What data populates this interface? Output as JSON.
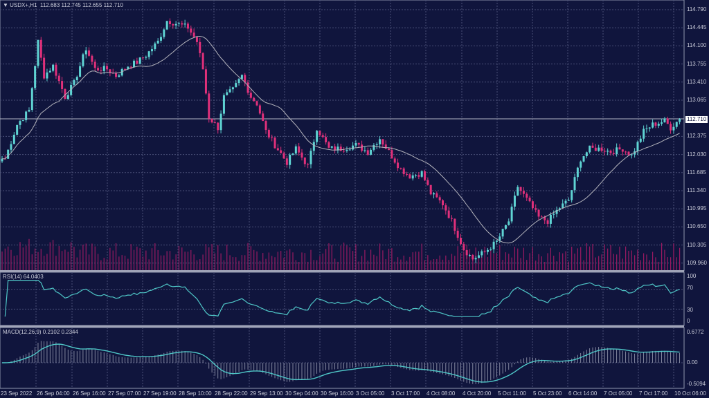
{
  "header": {
    "symbol": "USDX+,H1",
    "ohlc": "112.683 112.745 112.655 112.710",
    "menu_icon": "triangle-down-icon"
  },
  "colors": {
    "background": "#10153d",
    "bull": "#5fd3d3",
    "bear": "#e0307a",
    "ma": "#b4b4bc",
    "indicator": "#4fc8c8",
    "volume": "#9c1a62",
    "grid": "#4a5078"
  },
  "chart_data": {
    "type": "candlestick",
    "symbol": "USDX+",
    "timeframe": "H1",
    "current_price": "112.710",
    "ylim": [
      109.96,
      114.79
    ],
    "price_ticks": [
      "114.790",
      "114.445",
      "114.100",
      "113.755",
      "113.410",
      "113.065",
      "112.710",
      "112.375",
      "112.030",
      "111.685",
      "111.340",
      "110.995",
      "110.650",
      "110.305",
      "109.960"
    ],
    "x_ticks": [
      "23 Sep 2022",
      "26 Sep 04:00",
      "26 Sep 16:00",
      "27 Sep 07:00",
      "27 Sep 19:00",
      "28 Sep 10:00",
      "28 Sep 22:00",
      "29 Sep 13:00",
      "30 Sep 04:00",
      "30 Sep 16:00",
      "3 Oct 05:00",
      "3 Oct 17:00",
      "4 Oct 08:00",
      "4 Oct 20:00",
      "5 Oct 11:00",
      "5 Oct 23:00",
      "6 Oct 14:00",
      "7 Oct 05:00",
      "7 Oct 17:00",
      "10 Oct 06:00"
    ],
    "close_path": [
      [
        1,
        111.95
      ],
      [
        5,
        112.6
      ],
      [
        9,
        112.87
      ],
      [
        12,
        114.18
      ],
      [
        14,
        113.53
      ],
      [
        17,
        113.72
      ],
      [
        21,
        113.13
      ],
      [
        24,
        113.39
      ],
      [
        28,
        114.05
      ],
      [
        31,
        113.66
      ],
      [
        35,
        113.66
      ],
      [
        38,
        113.53
      ],
      [
        42,
        113.72
      ],
      [
        45,
        113.79
      ],
      [
        48,
        113.92
      ],
      [
        52,
        114.18
      ],
      [
        55,
        114.58
      ],
      [
        59,
        114.51
      ],
      [
        62,
        114.45
      ],
      [
        65,
        114.18
      ],
      [
        67,
        113.66
      ],
      [
        69,
        112.74
      ],
      [
        72,
        112.54
      ],
      [
        74,
        113.13
      ],
      [
        77,
        113.26
      ],
      [
        80,
        113.53
      ],
      [
        83,
        113.13
      ],
      [
        85,
        113.0
      ],
      [
        88,
        112.47
      ],
      [
        91,
        112.21
      ],
      [
        95,
        111.88
      ],
      [
        98,
        112.14
      ],
      [
        102,
        111.81
      ],
      [
        105,
        112.54
      ],
      [
        109,
        112.14
      ],
      [
        113,
        112.14
      ],
      [
        118,
        112.21
      ],
      [
        122,
        112.08
      ],
      [
        126,
        112.34
      ],
      [
        129,
        112.08
      ],
      [
        133,
        111.75
      ],
      [
        136,
        111.62
      ],
      [
        140,
        111.68
      ],
      [
        143,
        111.29
      ],
      [
        147,
        111.09
      ],
      [
        150,
        110.76
      ],
      [
        154,
        110.23
      ],
      [
        157,
        110.04
      ],
      [
        161,
        110.17
      ],
      [
        165,
        110.37
      ],
      [
        169,
        110.76
      ],
      [
        172,
        111.42
      ],
      [
        176,
        111.09
      ],
      [
        179,
        110.83
      ],
      [
        182,
        110.76
      ],
      [
        186,
        111.02
      ],
      [
        189,
        111.16
      ],
      [
        193,
        111.95
      ],
      [
        196,
        112.14
      ],
      [
        200,
        112.14
      ],
      [
        203,
        112.08
      ],
      [
        207,
        112.14
      ],
      [
        210,
        112.01
      ],
      [
        214,
        112.47
      ],
      [
        217,
        112.6
      ],
      [
        221,
        112.67
      ],
      [
        223,
        112.54
      ],
      [
        226,
        112.71
      ]
    ],
    "moving_average": {
      "period": 20
    },
    "rsi": {
      "label": "RSI(14) 64.0403",
      "ticks": [
        "100",
        "70",
        "30",
        "0"
      ],
      "ylim": [
        0,
        100
      ]
    },
    "macd": {
      "label": "MACD(12,26,9) 0.2102 0.2344",
      "ticks": [
        "0.6772",
        "0.00",
        "-0.5094"
      ],
      "ylim": [
        -0.5094,
        0.6772
      ]
    }
  }
}
